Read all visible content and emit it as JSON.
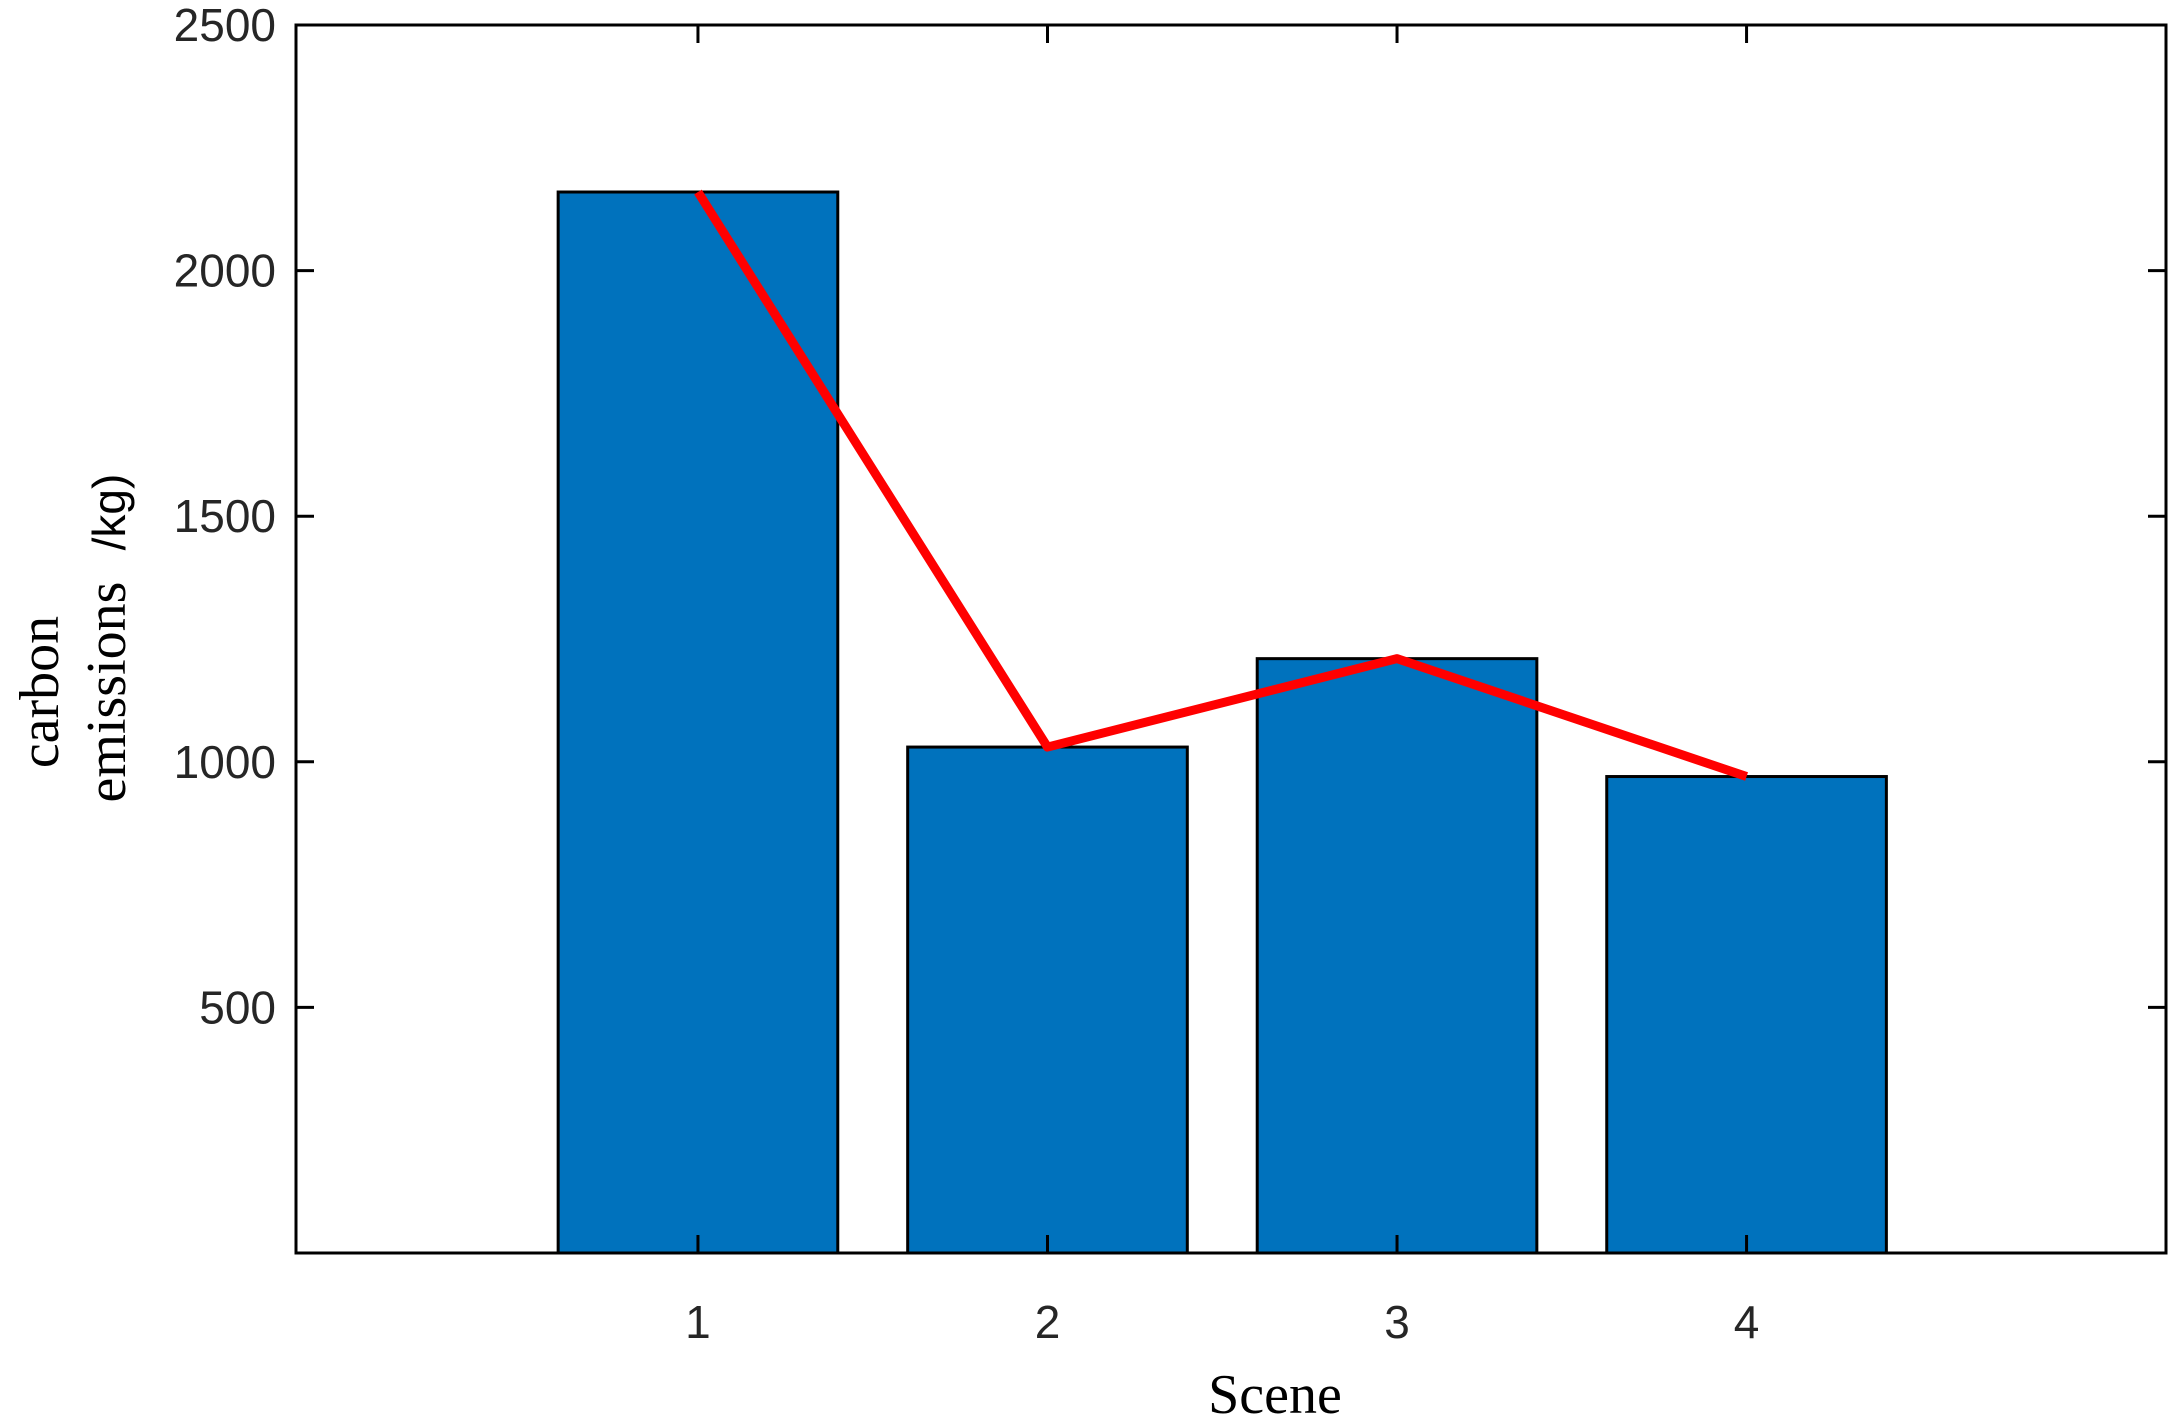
{
  "chart_data": {
    "type": "bar",
    "categories": [
      "1",
      "2",
      "3",
      "4"
    ],
    "series": [
      {
        "type": "bar",
        "values": [
          2160,
          1030,
          1210,
          970
        ],
        "color": "#0072BD"
      },
      {
        "type": "line",
        "values": [
          2160,
          1030,
          1210,
          970
        ],
        "color": "#FF0000"
      }
    ],
    "xlabel": "Scene",
    "ylabel_lines": [
      "carbon",
      "emissions",
      "/kg)"
    ],
    "ylim": [
      0,
      2500
    ],
    "xlim": [
      -0.15,
      5.2
    ],
    "yticks": [
      500,
      1000,
      1500,
      2000,
      2500
    ],
    "ytick_labels": [
      "500",
      "1000",
      "1500",
      "2000",
      "2500"
    ],
    "xticks": [
      1,
      2,
      3,
      4
    ],
    "xtick_labels": [
      "1",
      "2",
      "3",
      "4"
    ],
    "grid": false,
    "box": true
  }
}
